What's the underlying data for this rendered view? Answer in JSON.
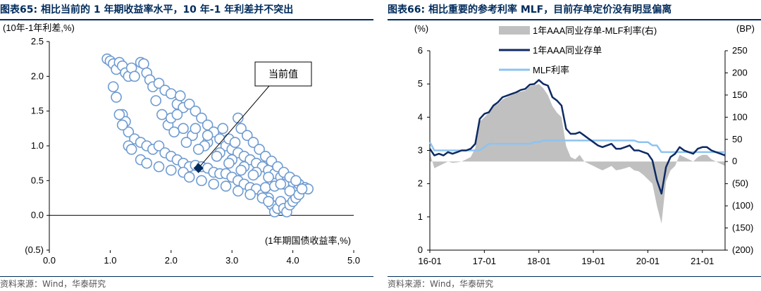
{
  "left": {
    "title": "图表65:  相比当前的 1 年期收益率水平，10 年-1 年利差并不突出",
    "source": "资料来源：Wind，华泰研究",
    "callout": "当前值",
    "colors": {
      "marker": "#6f9bd1",
      "current": "#002b5c",
      "axis": "#000000"
    }
  },
  "right": {
    "title": "图表66:  相比重要的参考利率 MLF，目前存单定价没有明显偏离",
    "source": "资料来源：Wind，华泰研究",
    "colors": {
      "spread": "#c0c0c0",
      "ncd": "#0d2a63",
      "mlf": "#8ec3f0"
    }
  },
  "chart_data": [
    {
      "type": "scatter",
      "title": "",
      "xlabel": "(1年期国债收益率,%)",
      "ylabel": "(10年-1年利差,%)",
      "xlim": [
        0.0,
        5.0
      ],
      "ylim": [
        -0.5,
        2.5
      ],
      "x_ticks": [
        "0.0",
        "1.0",
        "2.0",
        "3.0",
        "4.0",
        "5.0"
      ],
      "y_ticks": [
        "2.5",
        "2.0",
        "1.5",
        "1.0",
        "0.5",
        "0.0",
        "(0.5)"
      ],
      "marker": "hollow-circle",
      "series": [
        {
          "points": [
            [
              0.95,
              2.25
            ],
            [
              1.0,
              2.22
            ],
            [
              1.05,
              2.18
            ],
            [
              1.1,
              2.1
            ],
            [
              1.15,
              2.2
            ],
            [
              1.2,
              2.15
            ],
            [
              1.25,
              2.05
            ],
            [
              1.3,
              2.0
            ],
            [
              1.35,
              2.12
            ],
            [
              1.4,
              2.0
            ],
            [
              1.5,
              2.2
            ],
            [
              1.55,
              2.18
            ],
            [
              1.6,
              2.05
            ],
            [
              1.65,
              1.95
            ],
            [
              1.7,
              1.85
            ],
            [
              1.8,
              1.9
            ],
            [
              1.9,
              1.8
            ],
            [
              2.0,
              1.75
            ],
            [
              2.1,
              1.6
            ],
            [
              2.15,
              1.72
            ],
            [
              2.2,
              1.55
            ],
            [
              2.3,
              1.6
            ],
            [
              2.4,
              1.5
            ],
            [
              2.5,
              1.4
            ],
            [
              2.6,
              1.3
            ],
            [
              2.7,
              1.2
            ],
            [
              2.8,
              1.1
            ],
            [
              2.9,
              1.0
            ],
            [
              3.0,
              0.95
            ],
            [
              3.1,
              0.9
            ],
            [
              3.2,
              0.85
            ],
            [
              3.3,
              0.8
            ],
            [
              3.4,
              0.75
            ],
            [
              3.5,
              0.7
            ],
            [
              3.6,
              0.65
            ],
            [
              3.7,
              0.6
            ],
            [
              3.8,
              0.55
            ],
            [
              3.9,
              0.5
            ],
            [
              4.0,
              0.48
            ],
            [
              4.1,
              0.45
            ],
            [
              4.2,
              0.4
            ],
            [
              4.25,
              0.38
            ],
            [
              1.05,
              1.85
            ],
            [
              1.1,
              1.7
            ],
            [
              1.2,
              1.45
            ],
            [
              1.25,
              1.35
            ],
            [
              1.3,
              1.2
            ],
            [
              1.4,
              1.1
            ],
            [
              1.5,
              1.05
            ],
            [
              1.6,
              1.0
            ],
            [
              1.7,
              0.95
            ],
            [
              1.8,
              1.0
            ],
            [
              1.9,
              0.9
            ],
            [
              2.0,
              0.85
            ],
            [
              2.1,
              0.8
            ],
            [
              2.2,
              0.75
            ],
            [
              2.3,
              0.7
            ],
            [
              2.4,
              0.72
            ],
            [
              2.5,
              0.7
            ],
            [
              2.6,
              0.68
            ],
            [
              2.7,
              0.62
            ],
            [
              2.8,
              0.6
            ],
            [
              2.9,
              0.6
            ],
            [
              3.0,
              0.55
            ],
            [
              3.1,
              0.5
            ],
            [
              3.2,
              0.45
            ],
            [
              3.3,
              0.4
            ],
            [
              3.4,
              0.38
            ],
            [
              3.5,
              0.3
            ],
            [
              3.6,
              0.25
            ],
            [
              3.65,
              0.15
            ],
            [
              3.7,
              0.05
            ],
            [
              3.75,
              0.1
            ],
            [
              3.8,
              0.2
            ],
            [
              3.85,
              0.1
            ],
            [
              3.9,
              0.05
            ],
            [
              3.95,
              0.15
            ],
            [
              4.0,
              0.2
            ],
            [
              4.05,
              0.25
            ],
            [
              4.1,
              0.3
            ],
            [
              1.3,
              1.0
            ],
            [
              1.35,
              0.95
            ],
            [
              1.5,
              0.8
            ],
            [
              1.6,
              0.75
            ],
            [
              1.8,
              0.7
            ],
            [
              2.0,
              0.65
            ],
            [
              2.2,
              0.62
            ],
            [
              2.3,
              0.55
            ],
            [
              2.5,
              0.5
            ],
            [
              2.7,
              0.45
            ],
            [
              2.9,
              0.42
            ],
            [
              3.1,
              0.35
            ],
            [
              3.3,
              0.3
            ],
            [
              3.5,
              0.25
            ],
            [
              3.6,
              0.2
            ],
            [
              3.55,
              0.4
            ],
            [
              3.7,
              0.42
            ],
            [
              3.85,
              0.45
            ],
            [
              3.95,
              0.35
            ],
            [
              4.15,
              0.38
            ],
            [
              2.6,
              1.05
            ],
            [
              2.8,
              0.9
            ],
            [
              3.0,
              0.8
            ],
            [
              3.2,
              0.7
            ],
            [
              3.4,
              0.62
            ],
            [
              3.6,
              0.55
            ],
            [
              3.8,
              0.45
            ],
            [
              2.2,
              1.25
            ],
            [
              2.35,
              1.15
            ],
            [
              2.55,
              1.0
            ],
            [
              2.75,
              0.85
            ],
            [
              2.95,
              0.75
            ],
            [
              3.15,
              0.65
            ],
            [
              3.35,
              0.58
            ],
            [
              1.75,
              1.65
            ],
            [
              1.85,
              1.45
            ],
            [
              1.95,
              1.3
            ],
            [
              2.05,
              1.2
            ],
            [
              2.25,
              1.05
            ],
            [
              2.45,
              0.95
            ],
            [
              3.1,
              1.4
            ],
            [
              3.15,
              1.25
            ],
            [
              3.25,
              1.15
            ],
            [
              3.35,
              1.05
            ],
            [
              3.45,
              0.95
            ],
            [
              3.55,
              0.85
            ],
            [
              3.65,
              0.78
            ],
            [
              3.75,
              0.7
            ],
            [
              3.85,
              0.62
            ],
            [
              3.95,
              0.55
            ],
            [
              4.05,
              0.5
            ],
            [
              1.15,
              1.45
            ],
            [
              1.2,
              1.3
            ],
            [
              2.0,
              1.4
            ],
            [
              2.1,
              1.45
            ],
            [
              2.4,
              1.25
            ],
            [
              2.6,
              1.15
            ],
            [
              2.85,
              1.25
            ],
            [
              2.95,
              1.1
            ],
            [
              3.05,
              1.05
            ]
          ]
        }
      ],
      "current": {
        "x": 2.45,
        "y": 0.68
      }
    },
    {
      "type": "area",
      "title": "",
      "x_ticks": [
        "16-01",
        "17-01",
        "18-01",
        "19-01",
        "20-01",
        "21-01"
      ],
      "x_tick_index": [
        0,
        12,
        24,
        36,
        48,
        60
      ],
      "left_axis": {
        "label": "(%)",
        "ylim": [
          0,
          6
        ],
        "ticks": [
          "0",
          "1",
          "2",
          "3",
          "4",
          "5",
          "6"
        ]
      },
      "right_axis": {
        "label": "(BP)",
        "ylim": [
          -200,
          250
        ],
        "ticks": [
          "250",
          "200",
          "150",
          "100",
          "50",
          "0",
          "(50)",
          "(100)",
          "(150)",
          "(200)"
        ]
      },
      "x": [
        "16-01",
        "16-02",
        "16-03",
        "16-04",
        "16-05",
        "16-06",
        "16-07",
        "16-08",
        "16-09",
        "16-10",
        "16-11",
        "16-12",
        "17-01",
        "17-02",
        "17-03",
        "17-04",
        "17-05",
        "17-06",
        "17-07",
        "17-08",
        "17-09",
        "17-10",
        "17-11",
        "17-12",
        "18-01",
        "18-02",
        "18-03",
        "18-04",
        "18-05",
        "18-06",
        "18-07",
        "18-08",
        "18-09",
        "18-10",
        "18-11",
        "18-12",
        "19-01",
        "19-02",
        "19-03",
        "19-04",
        "19-05",
        "19-06",
        "19-07",
        "19-08",
        "19-09",
        "19-10",
        "19-11",
        "19-12",
        "20-01",
        "20-02",
        "20-03",
        "20-04",
        "20-05",
        "20-06",
        "20-07",
        "20-08",
        "20-09",
        "20-10",
        "20-11",
        "20-12",
        "21-01",
        "21-02",
        "21-03",
        "21-04",
        "21-05",
        "21-06"
      ],
      "series": [
        {
          "name": "1年AAA同业存单-MLF利率(右)",
          "axis": "right",
          "type": "area",
          "values": [
            20,
            -15,
            -10,
            -5,
            0,
            -3,
            -2,
            0,
            5,
            10,
            30,
            90,
            100,
            110,
            125,
            130,
            140,
            145,
            150,
            155,
            158,
            160,
            170,
            172,
            175,
            165,
            150,
            125,
            110,
            100,
            35,
            10,
            5,
            15,
            0,
            -5,
            -10,
            -15,
            -20,
            -15,
            -10,
            -20,
            -18,
            -15,
            -12,
            -20,
            -22,
            -30,
            -40,
            -50,
            -100,
            -140,
            -45,
            -20,
            -10,
            15,
            10,
            5,
            0,
            10,
            15,
            15,
            5,
            0,
            -5,
            -10
          ]
        },
        {
          "name": "1年AAA同业存单",
          "axis": "left",
          "type": "line",
          "values": [
            3.05,
            2.85,
            2.9,
            2.85,
            2.95,
            2.9,
            2.95,
            3.0,
            3.0,
            3.05,
            3.2,
            3.95,
            4.1,
            4.15,
            4.35,
            4.45,
            4.6,
            4.65,
            4.7,
            4.75,
            4.82,
            4.85,
            4.98,
            5.0,
            5.12,
            5.0,
            4.95,
            4.6,
            4.5,
            4.35,
            3.65,
            3.5,
            3.5,
            3.55,
            3.45,
            3.35,
            3.25,
            3.15,
            3.1,
            3.15,
            3.2,
            3.05,
            3.05,
            3.1,
            3.15,
            3.0,
            3.0,
            2.95,
            2.9,
            2.7,
            2.1,
            1.7,
            2.5,
            2.8,
            2.9,
            3.1,
            3.0,
            2.95,
            2.9,
            3.05,
            3.1,
            3.1,
            3.0,
            2.95,
            2.9,
            2.85
          ]
        },
        {
          "name": "MLF利率",
          "axis": "left",
          "type": "line",
          "values": [
            3.25,
            3.0,
            3.0,
            3.0,
            3.0,
            3.0,
            3.0,
            3.0,
            3.0,
            3.0,
            3.0,
            3.0,
            3.1,
            3.2,
            3.2,
            3.2,
            3.2,
            3.2,
            3.2,
            3.2,
            3.2,
            3.2,
            3.2,
            3.25,
            3.25,
            3.3,
            3.3,
            3.3,
            3.3,
            3.3,
            3.3,
            3.3,
            3.3,
            3.3,
            3.3,
            3.3,
            3.3,
            3.3,
            3.3,
            3.3,
            3.3,
            3.3,
            3.3,
            3.3,
            3.3,
            3.3,
            3.25,
            3.25,
            3.25,
            3.15,
            3.15,
            2.95,
            2.95,
            2.95,
            2.95,
            2.95,
            2.95,
            2.95,
            2.95,
            2.95,
            2.95,
            2.95,
            2.95,
            2.95,
            2.95,
            2.95
          ]
        }
      ],
      "legend_placement": "top-left"
    }
  ]
}
